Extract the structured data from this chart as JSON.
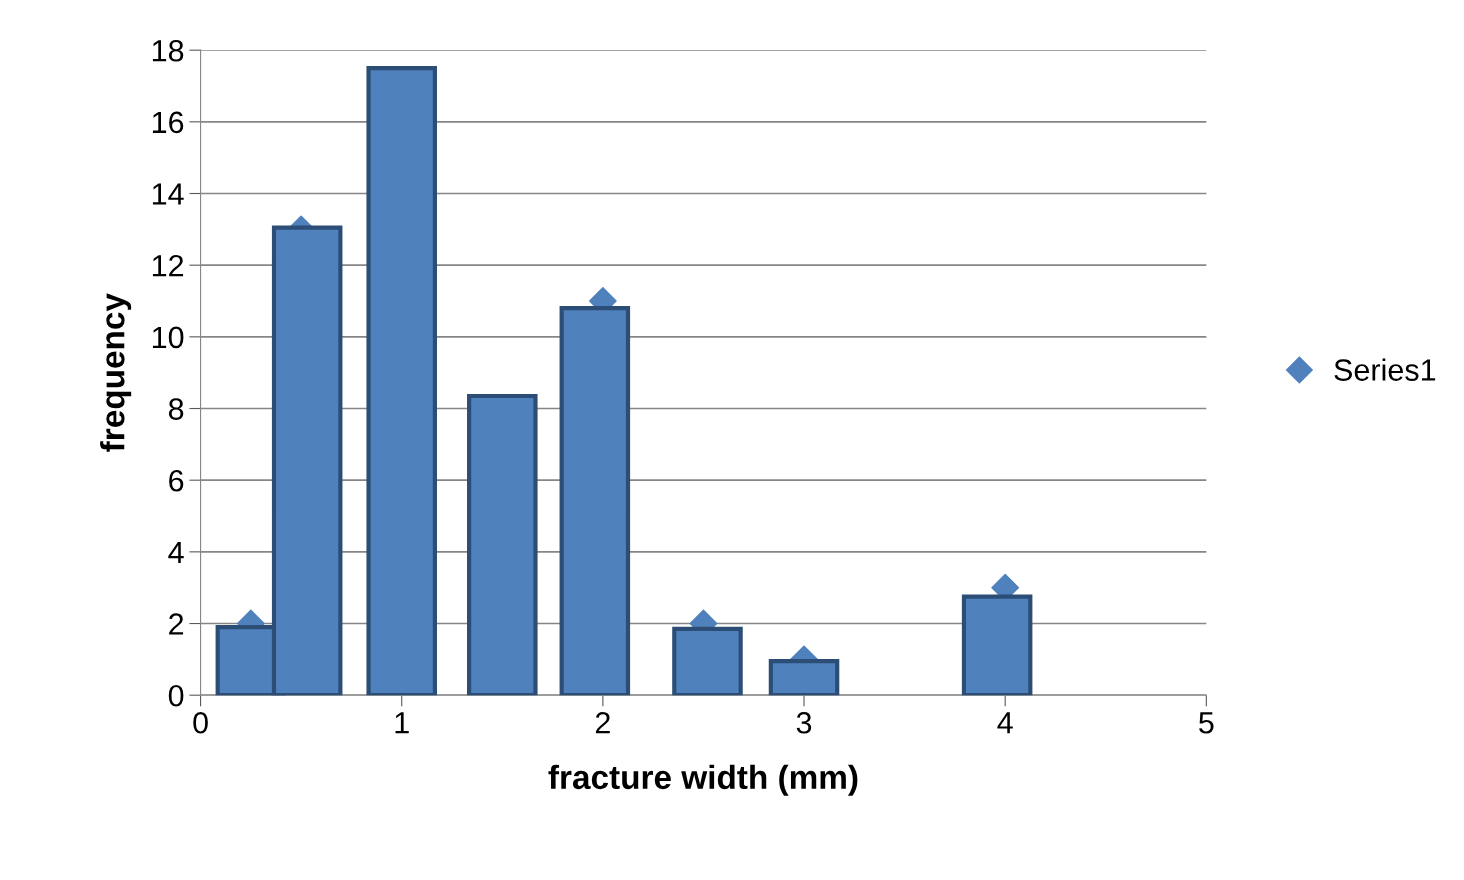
{
  "chart_data": {
    "type": "scatter",
    "xlabel": "fracture width (mm)",
    "ylabel": "frequency",
    "x": [
      0.25,
      0.5,
      1,
      1.5,
      2,
      2.5,
      3,
      4
    ],
    "series": [
      {
        "type": "bar",
        "color": "#4f81bd",
        "x": [
          0.25,
          0.53,
          1,
          1.5,
          1.96,
          2.52,
          3,
          3.96
        ],
        "values": [
          1.9,
          13.05,
          17.5,
          8.35,
          10.8,
          1.85,
          0.95,
          2.75
        ]
      },
      {
        "name": "Series1",
        "color": "#4f81bd",
        "values": [
          2,
          13,
          null,
          null,
          11,
          2,
          1,
          3
        ]
      }
    ],
    "xlim": [
      0,
      5
    ],
    "xticks": [
      0,
      1,
      2,
      3,
      4,
      5
    ],
    "ylim": [
      0,
      18
    ],
    "yticks": [
      0,
      2,
      4,
      6,
      8,
      10,
      12,
      14,
      16,
      18
    ],
    "grid": "y",
    "legend": "right",
    "marker": "diamond"
  }
}
